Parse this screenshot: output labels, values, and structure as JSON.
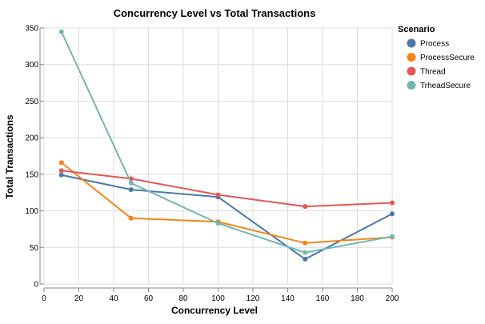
{
  "chart_data": {
    "type": "line",
    "title": "Concurrency Level vs Total Transactions",
    "xlabel": "Concurrency Level",
    "ylabel": "Total Transactions",
    "xlim": [
      0,
      200
    ],
    "ylim": [
      0,
      350
    ],
    "xticks": [
      0,
      20,
      40,
      60,
      80,
      100,
      120,
      140,
      160,
      180,
      200
    ],
    "yticks": [
      0,
      50,
      100,
      150,
      200,
      250,
      300,
      350
    ],
    "grid": true,
    "legend": {
      "title": "Scenario",
      "position": "right"
    },
    "x": [
      10,
      50,
      100,
      150,
      200
    ],
    "series": [
      {
        "name": "Process",
        "color": "#4c78a8",
        "values": [
          149,
          129,
          119,
          34,
          96
        ]
      },
      {
        "name": "ProcessSecure",
        "color": "#f58518",
        "values": [
          166,
          90,
          85,
          56,
          64
        ]
      },
      {
        "name": "Thread",
        "color": "#e45756",
        "values": [
          155,
          144,
          122,
          106,
          111
        ]
      },
      {
        "name": "TrheadSecure",
        "color": "#72b7b2",
        "values": [
          345,
          138,
          83,
          43,
          65
        ]
      }
    ]
  }
}
